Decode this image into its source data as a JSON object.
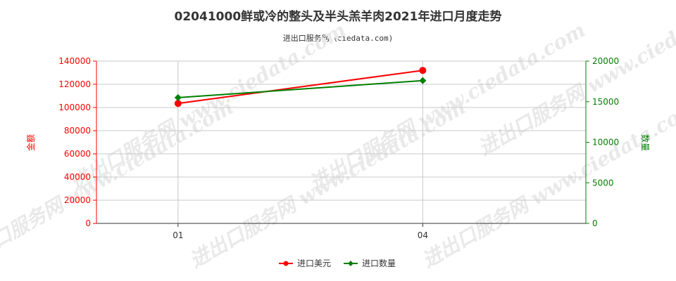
{
  "header": {
    "title": "02041000鲜或冷的整头及半头羔羊肉2021年进口月度走势",
    "source": "进出口服务网（ciedata.com)"
  },
  "watermark": "进出口服务网 www.ciedata.com",
  "colors": {
    "usd": "#ff0000",
    "qty": "#008000",
    "grid": "#c8c8c8",
    "axis": "#333333"
  },
  "chart_data": {
    "type": "line",
    "categories": [
      "01",
      "04"
    ],
    "x_range": [
      "00",
      "06"
    ],
    "y_left": {
      "label": "金额",
      "ylim": [
        0,
        140000
      ],
      "ticks": [
        0,
        20000,
        40000,
        60000,
        80000,
        100000,
        120000,
        140000
      ]
    },
    "y_right": {
      "label": "数量",
      "ylim": [
        0,
        20000
      ],
      "ticks": [
        0,
        5000,
        10000,
        15000,
        20000
      ]
    },
    "series": [
      {
        "name": "进口美元",
        "axis": "left",
        "color": "#ff0000",
        "marker": "circle",
        "values": [
          103500,
          132000
        ]
      },
      {
        "name": "进口数量",
        "axis": "right",
        "color": "#008000",
        "marker": "diamond",
        "values": [
          15500,
          17600
        ]
      }
    ],
    "grid": true,
    "legend": "bottom-center"
  }
}
